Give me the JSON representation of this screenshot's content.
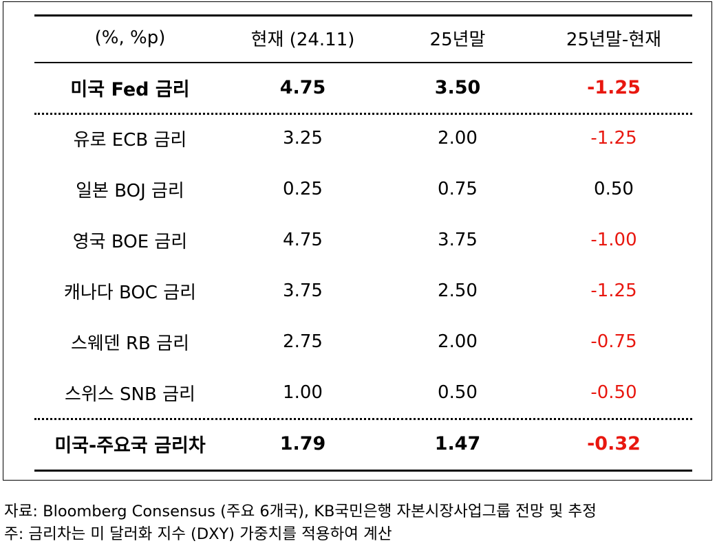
{
  "table": {
    "headers": [
      "(%, %p)",
      "현재 (24.11)",
      "25년말",
      "25년말-현재"
    ],
    "highlight_row": {
      "label": "미국 Fed 금리",
      "current": "4.75",
      "end_2025": "3.50",
      "diff": "-1.25"
    },
    "rows": [
      {
        "label": "유로 ECB 금리",
        "current": "3.25",
        "end_2025": "2.00",
        "diff": "-1.25"
      },
      {
        "label": "일본 BOJ 금리",
        "current": "0.25",
        "end_2025": "0.75",
        "diff": "0.50"
      },
      {
        "label": "영국 BOE 금리",
        "current": "4.75",
        "end_2025": "3.75",
        "diff": "-1.00"
      },
      {
        "label": "캐나다 BOC 금리",
        "current": "3.75",
        "end_2025": "2.50",
        "diff": "-1.25"
      },
      {
        "label": "스웨덴 RB 금리",
        "current": "2.75",
        "end_2025": "2.00",
        "diff": "-0.75"
      },
      {
        "label": "스위스 SNB 금리",
        "current": "1.00",
        "end_2025": "0.50",
        "diff": "-0.50"
      }
    ],
    "summary_row": {
      "label": "미국-주요국 금리차",
      "current": "1.79",
      "end_2025": "1.47",
      "diff": "-0.32"
    }
  },
  "colors": {
    "negative": "#e8170f",
    "text": "#000000"
  },
  "notes": {
    "source": "자료: Bloomberg Consensus (주요 6개국), KB국민은행 자본시장사업그룹 전망 및 추정",
    "note": "주: 금리차는 미 달러화 지수 (DXY) 가중치를 적용하여 계산"
  }
}
